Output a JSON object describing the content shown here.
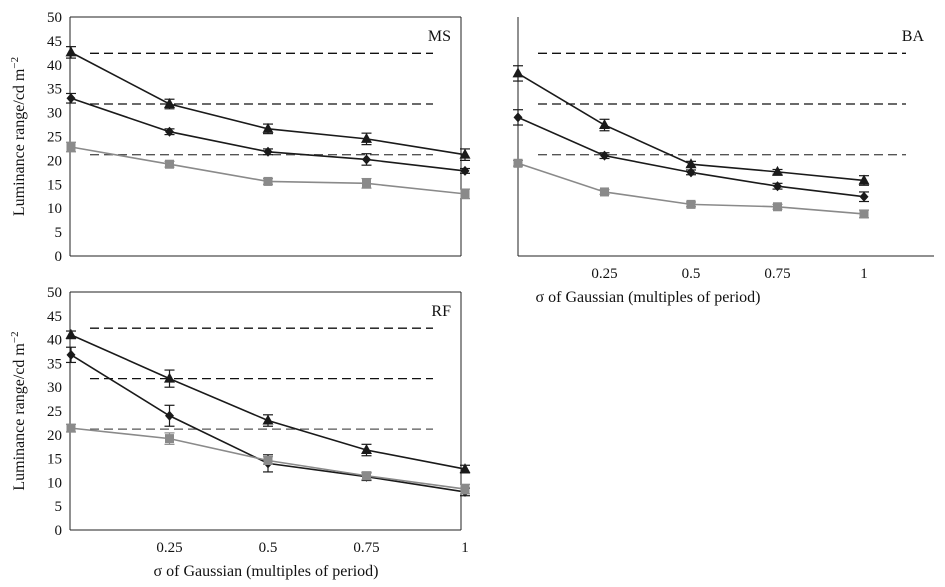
{
  "chart_data": [
    {
      "type": "line",
      "panel_label": "MS",
      "x": [
        0,
        0.25,
        0.5,
        0.75,
        1
      ],
      "xticks": [
        "0.25",
        "0.5",
        "0.75",
        "1"
      ],
      "show_xticks": false,
      "xlabel": "",
      "ylabel": "Luminance range/cd m",
      "ylabel_sup": "−2",
      "ylim": [
        0,
        50
      ],
      "yticks": [
        "0",
        "5",
        "10",
        "15",
        "20",
        "25",
        "30",
        "35",
        "40",
        "45",
        "50"
      ],
      "show_yticks": true,
      "grid": false,
      "reference_lines": [
        42.4,
        31.8,
        21.2
      ],
      "series": [
        {
          "marker": "triangle",
          "color": "#1a1a1a",
          "values": [
            42.6,
            31.8,
            26.6,
            24.5,
            21.2
          ],
          "err": [
            1.2,
            1.0,
            1.0,
            1.2,
            1.2
          ]
        },
        {
          "marker": "diamond",
          "color": "#1a1a1a",
          "values": [
            33.0,
            26.0,
            21.8,
            20.2,
            17.8
          ],
          "err": [
            1.0,
            0.6,
            0.6,
            1.2,
            0.5
          ]
        },
        {
          "marker": "square",
          "color": "#8a8a8a",
          "values": [
            22.8,
            19.2,
            15.6,
            15.2,
            13.0
          ],
          "err": [
            1.0,
            0.6,
            0.6,
            1.0,
            1.0
          ]
        }
      ]
    },
    {
      "type": "line",
      "panel_label": "BA",
      "x": [
        0,
        0.25,
        0.5,
        0.75,
        1
      ],
      "xticks": [
        "0.25",
        "0.5",
        "0.75",
        "1"
      ],
      "show_xticks": true,
      "xlabel": "σ of Gaussian (multiples of period)",
      "ylabel": "",
      "ylim": [
        0,
        50
      ],
      "yticks": [],
      "show_yticks": false,
      "grid": false,
      "reference_lines": [
        42.4,
        31.8,
        21.2
      ],
      "series": [
        {
          "marker": "triangle",
          "color": "#1a1a1a",
          "values": [
            38.2,
            27.4,
            19.2,
            17.6,
            15.8
          ],
          "err": [
            1.6,
            1.2,
            0.6,
            0.5,
            1.0
          ]
        },
        {
          "marker": "diamond",
          "color": "#1a1a1a",
          "values": [
            29.0,
            21.0,
            17.5,
            14.6,
            12.4
          ],
          "err": [
            1.6,
            0.6,
            0.5,
            0.6,
            1.0
          ]
        },
        {
          "marker": "square",
          "color": "#8a8a8a",
          "values": [
            19.4,
            13.4,
            10.8,
            10.3,
            8.8
          ],
          "err": [
            0.6,
            0.5,
            0.5,
            0.5,
            0.8
          ]
        }
      ]
    },
    {
      "type": "line",
      "panel_label": "RF",
      "x": [
        0,
        0.25,
        0.5,
        0.75,
        1
      ],
      "xticks": [
        "0.25",
        "0.5",
        "0.75",
        "1"
      ],
      "show_xticks": true,
      "xlabel": "σ of Gaussian (multiples of period)",
      "ylabel": "Luminance range/cd m",
      "ylabel_sup": "−2",
      "ylim": [
        0,
        50
      ],
      "yticks": [
        "0",
        "5",
        "10",
        "15",
        "20",
        "25",
        "30",
        "35",
        "40",
        "45",
        "50"
      ],
      "show_yticks": true,
      "grid": false,
      "reference_lines": [
        42.4,
        31.8,
        21.2
      ],
      "series": [
        {
          "marker": "triangle",
          "color": "#1a1a1a",
          "values": [
            41.0,
            31.8,
            23.0,
            16.8,
            12.8
          ],
          "err": [
            0.8,
            1.8,
            1.2,
            1.2,
            0.8
          ]
        },
        {
          "marker": "diamond",
          "color": "#1a1a1a",
          "values": [
            36.8,
            24.0,
            14.0,
            11.2,
            8.0
          ],
          "err": [
            1.6,
            2.2,
            1.8,
            0.8,
            0.8
          ]
        },
        {
          "marker": "square",
          "color": "#8a8a8a",
          "values": [
            21.4,
            19.2,
            14.6,
            11.4,
            8.6
          ],
          "err": [
            0.8,
            1.2,
            0.8,
            0.8,
            1.0
          ]
        }
      ]
    }
  ]
}
